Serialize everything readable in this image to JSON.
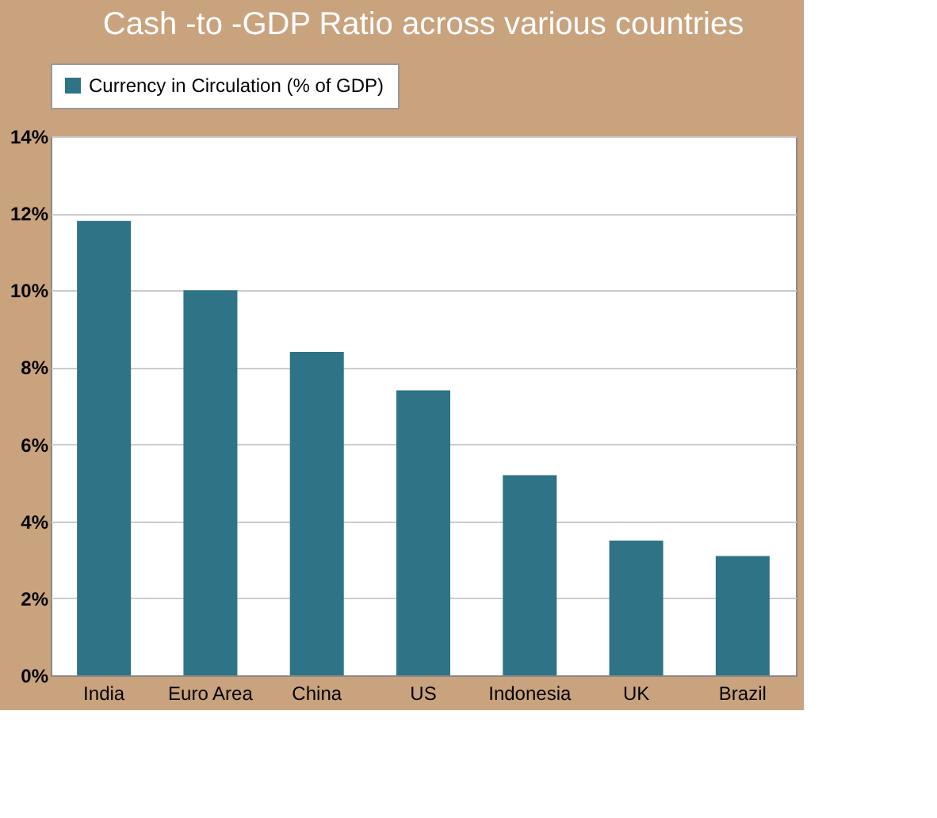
{
  "chart_data": {
    "type": "bar",
    "title": "Cash -to -GDP Ratio across various countries",
    "categories": [
      "India",
      "Euro Area",
      "China",
      "US",
      "Indonesia",
      "UK",
      "Brazil"
    ],
    "series": [
      {
        "name": "Currency in Circulation (% of GDP)",
        "color": "#2e7386",
        "values": [
          11.8,
          10.0,
          8.4,
          7.4,
          5.2,
          3.5,
          3.1
        ]
      }
    ],
    "ylim": [
      0,
      14
    ],
    "yticks": [
      {
        "value": 0,
        "label": "0%"
      },
      {
        "value": 2,
        "label": "2%"
      },
      {
        "value": 4,
        "label": "4%"
      },
      {
        "value": 6,
        "label": "6%"
      },
      {
        "value": 8,
        "label": "8%"
      },
      {
        "value": 10,
        "label": "10%"
      },
      {
        "value": 12,
        "label": "12%"
      },
      {
        "value": 14,
        "label": "14%"
      }
    ],
    "grid": "y",
    "legend": "top"
  }
}
